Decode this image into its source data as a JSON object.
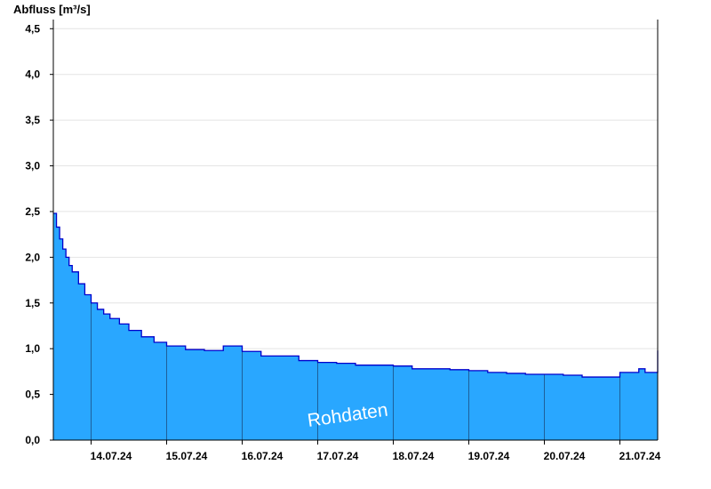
{
  "chart_data": {
    "type": "area",
    "ylabel": "Abfluss [m³/s]",
    "watermark": "Rohdaten",
    "ylim": [
      0,
      4.6
    ],
    "yticks": [
      0,
      0.5,
      1.0,
      1.5,
      2.0,
      2.5,
      3.0,
      3.5,
      4.0,
      4.5
    ],
    "ytick_labels": [
      "0,0",
      "0,5",
      "1,0",
      "1,5",
      "2,0",
      "2,5",
      "3,0",
      "3,5",
      "4,0",
      "4,5"
    ],
    "xlim": [
      "2024-07-13 12:00",
      "2024-07-21 12:00"
    ],
    "xticks": [
      "14.07.24",
      "15.07.24",
      "16.07.24",
      "17.07.24",
      "18.07.24",
      "19.07.24",
      "20.07.24",
      "21.07.24"
    ],
    "day_boundaries": [
      "2024-07-14 00:00",
      "2024-07-15 00:00",
      "2024-07-16 00:00",
      "2024-07-17 00:00",
      "2024-07-18 00:00",
      "2024-07-19 00:00",
      "2024-07-20 00:00",
      "2024-07-21 00:00"
    ],
    "grid": true,
    "colors": {
      "fill": "#29a7ff",
      "line": "#0000cc",
      "grid": "#e4e4e4",
      "axis": "#000000",
      "divider": "#1e5f9a"
    },
    "series": [
      {
        "x": [
          "2024-07-13 12:00",
          "2024-07-13 13:00",
          "2024-07-13 14:00",
          "2024-07-13 15:00",
          "2024-07-13 16:00",
          "2024-07-13 17:00",
          "2024-07-13 18:00",
          "2024-07-13 20:00",
          "2024-07-13 22:00",
          "2024-07-14 00:00",
          "2024-07-14 02:00",
          "2024-07-14 04:00",
          "2024-07-14 06:00",
          "2024-07-14 09:00",
          "2024-07-14 12:00",
          "2024-07-14 16:00",
          "2024-07-14 20:00",
          "2024-07-15 00:00",
          "2024-07-15 06:00",
          "2024-07-15 12:00",
          "2024-07-15 18:00",
          "2024-07-16 00:00",
          "2024-07-16 06:00",
          "2024-07-16 12:00",
          "2024-07-16 18:00",
          "2024-07-17 00:00",
          "2024-07-17 06:00",
          "2024-07-17 12:00",
          "2024-07-17 18:00",
          "2024-07-18 00:00",
          "2024-07-18 06:00",
          "2024-07-18 12:00",
          "2024-07-18 18:00",
          "2024-07-19 00:00",
          "2024-07-19 06:00",
          "2024-07-19 12:00",
          "2024-07-19 18:00",
          "2024-07-20 00:00",
          "2024-07-20 06:00",
          "2024-07-20 12:00",
          "2024-07-20 18:00",
          "2024-07-21 00:00",
          "2024-07-21 06:00",
          "2024-07-21 07:00",
          "2024-07-21 08:00",
          "2024-07-21 09:00",
          "2024-07-21 12:00"
        ],
        "y": [
          2.48,
          2.33,
          2.2,
          2.09,
          2.0,
          1.91,
          1.84,
          1.71,
          1.59,
          1.5,
          1.43,
          1.38,
          1.33,
          1.27,
          1.2,
          1.13,
          1.07,
          1.03,
          0.99,
          0.98,
          1.03,
          0.97,
          0.92,
          0.92,
          0.87,
          0.85,
          0.84,
          0.82,
          0.82,
          0.81,
          0.78,
          0.78,
          0.77,
          0.76,
          0.74,
          0.73,
          0.72,
          0.72,
          0.71,
          0.69,
          0.69,
          0.74,
          0.78,
          0.78,
          0.74,
          0.74,
          0.98
        ]
      }
    ]
  }
}
